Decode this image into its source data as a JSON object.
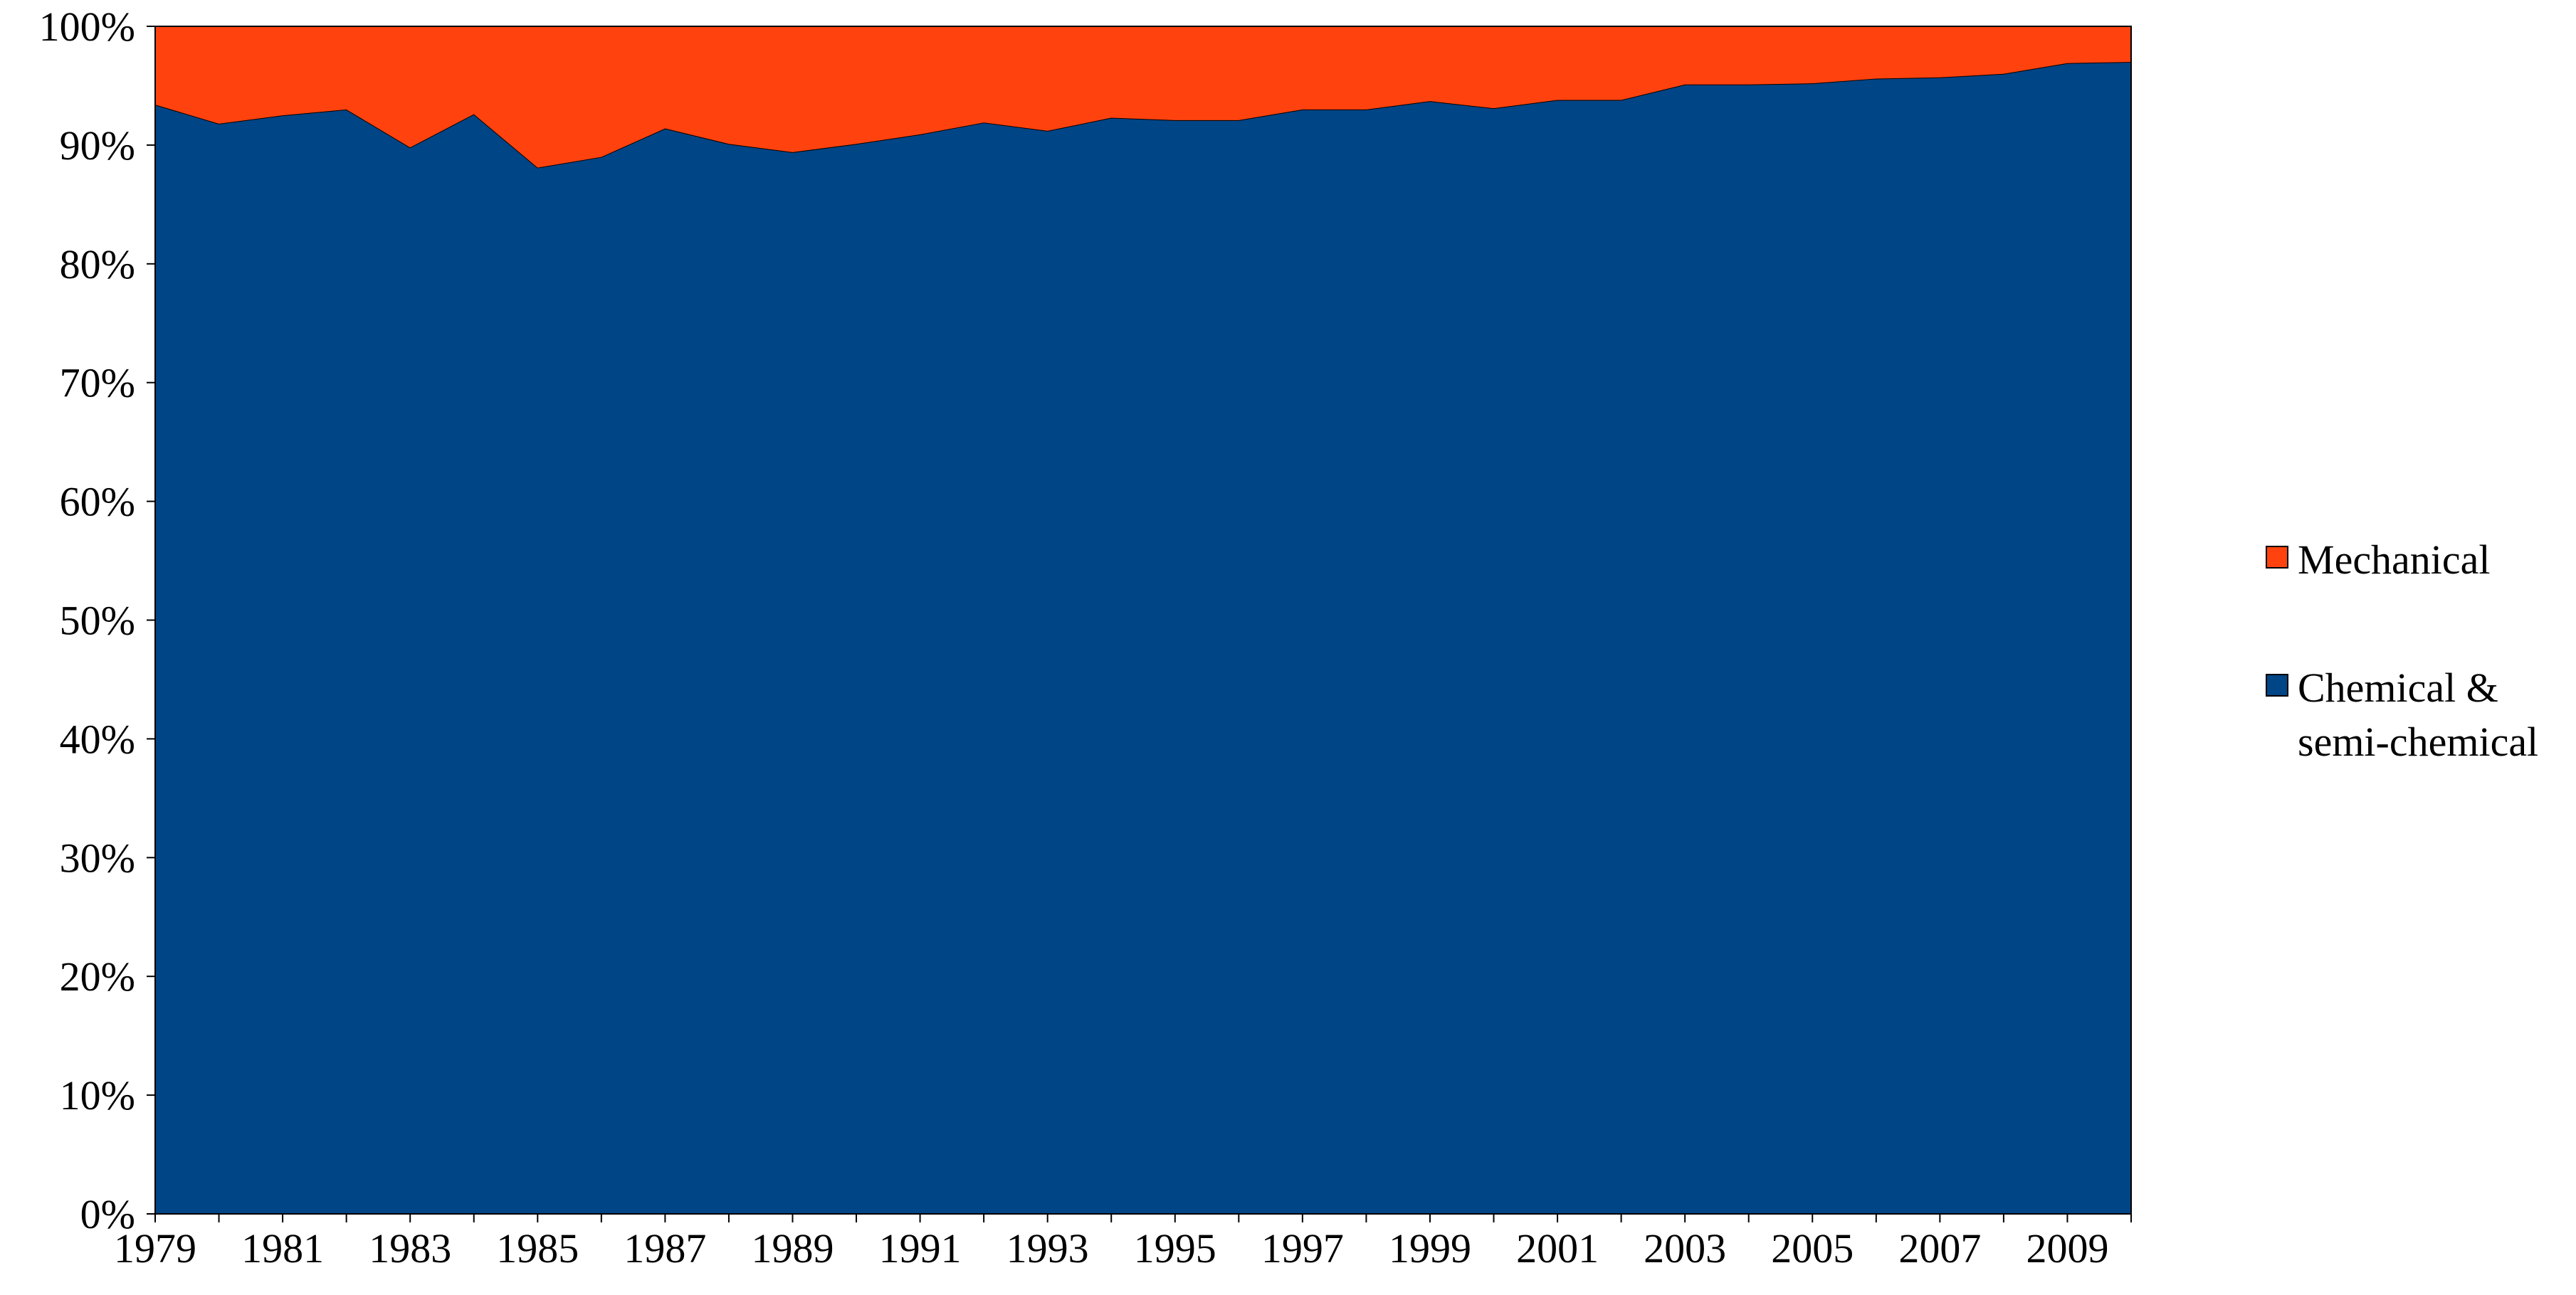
{
  "chart_data": {
    "type": "area",
    "stacked": "percent",
    "x": [
      1979,
      1980,
      1981,
      1982,
      1983,
      1984,
      1985,
      1986,
      1987,
      1988,
      1989,
      1990,
      1991,
      1992,
      1993,
      1994,
      1995,
      1996,
      1997,
      1998,
      1999,
      2000,
      2001,
      2002,
      2003,
      2004,
      2005,
      2006,
      2007,
      2008,
      2009,
      2010
    ],
    "x_tick_labels": [
      "1979",
      "1981",
      "1983",
      "1985",
      "1987",
      "1989",
      "1991",
      "1993",
      "1995",
      "1997",
      "1999",
      "2001",
      "2003",
      "2005",
      "2007",
      "2009"
    ],
    "y_tick_labels": [
      "0%",
      "10%",
      "20%",
      "30%",
      "40%",
      "50%",
      "60%",
      "70%",
      "80%",
      "90%",
      "100%"
    ],
    "ylim": [
      0,
      100
    ],
    "series": [
      {
        "name": "Chemical & semi-chemical",
        "color": "#004586",
        "values": [
          93.4,
          91.8,
          92.5,
          93.0,
          89.8,
          92.6,
          88.1,
          89.0,
          91.4,
          90.1,
          89.4,
          90.1,
          90.9,
          91.9,
          91.2,
          92.3,
          92.1,
          92.1,
          93.0,
          93.0,
          93.7,
          93.1,
          93.8,
          93.8,
          95.1,
          95.1,
          95.2,
          95.6,
          95.7,
          96.0,
          96.9,
          97.0
        ]
      },
      {
        "name": "Mechanical",
        "color": "#ff420e",
        "values": [
          6.6,
          8.2,
          7.5,
          7.0,
          10.2,
          7.4,
          11.9,
          11.0,
          8.6,
          9.9,
          10.6,
          9.9,
          9.1,
          8.1,
          8.8,
          7.7,
          7.9,
          7.9,
          7.0,
          7.0,
          6.3,
          6.9,
          6.2,
          6.2,
          4.9,
          4.9,
          4.8,
          4.4,
          4.3,
          4.0,
          3.1,
          3.0
        ]
      }
    ],
    "legend": {
      "position": "right",
      "items": [
        {
          "lines": [
            "Mechanical"
          ],
          "color": "#ff420e"
        },
        {
          "lines": [
            "Chemical &",
            "semi-chemical"
          ],
          "color": "#004586"
        }
      ]
    },
    "grid": false,
    "title": "",
    "xlabel": "",
    "ylabel": ""
  }
}
